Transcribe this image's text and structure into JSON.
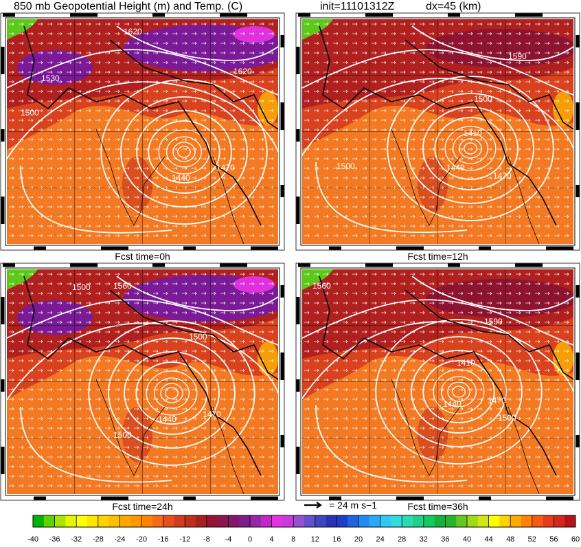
{
  "title": "850 mb Geopotential Height (m) and Temp. (C)",
  "init": "init=11101312Z",
  "dx": "dx=45 (km)",
  "panels": [
    {
      "caption": "Fcst time=0h",
      "contour_labels": [
        "1620",
        "1530",
        "1620",
        "1500",
        "1440",
        "1470"
      ]
    },
    {
      "caption": "Fcst time=12h",
      "contour_labels": [
        "1590",
        "1500",
        "1410",
        "1440",
        "1470",
        "1500"
      ]
    },
    {
      "caption": "Fcst time=24h",
      "contour_labels": [
        "1500",
        "1560",
        "1500",
        "1440",
        "1470",
        "1500"
      ]
    },
    {
      "caption": "Fcst time=36h",
      "contour_labels": [
        "1560",
        "1590",
        "1410",
        "1440",
        "1470",
        "1500"
      ]
    }
  ],
  "vector_reference": "= 24 m s−1",
  "colorbar": {
    "ticks": [
      -40,
      -36,
      -32,
      -28,
      -24,
      -20,
      -16,
      -12,
      -8,
      -4,
      0,
      4,
      8,
      12,
      16,
      20,
      24,
      28,
      32,
      36,
      40,
      44,
      48,
      52,
      56,
      60
    ],
    "colors": [
      "#00b400",
      "#5fd200",
      "#a8e600",
      "#e6f500",
      "#ffff00",
      "#ffe600",
      "#ffd200",
      "#ffbe00",
      "#ffa800",
      "#ff9600",
      "#ff8200",
      "#f56a14",
      "#e6501e",
      "#d23c1e",
      "#be2d1e",
      "#a81e1e",
      "#961432",
      "#8c1450",
      "#82186e",
      "#7d1e8c",
      "#9628a8",
      "#be28c8",
      "#e632e6",
      "#c83cdc",
      "#9650d2",
      "#6450c8",
      "#3c46be",
      "#2832b4",
      "#1e3cc8",
      "#1e64dc",
      "#1e8cf0",
      "#28aaf5",
      "#32c8f5",
      "#32dcdc",
      "#28dcb4",
      "#1ed28c",
      "#14c864",
      "#14b43c",
      "#28b428",
      "#64c81e",
      "#a0dc14",
      "#d2e614",
      "#ffff00",
      "#ffd200",
      "#ffaa00",
      "#ff8200",
      "#f55a14",
      "#e63c1e",
      "#d2281e",
      "#b41414"
    ]
  }
}
